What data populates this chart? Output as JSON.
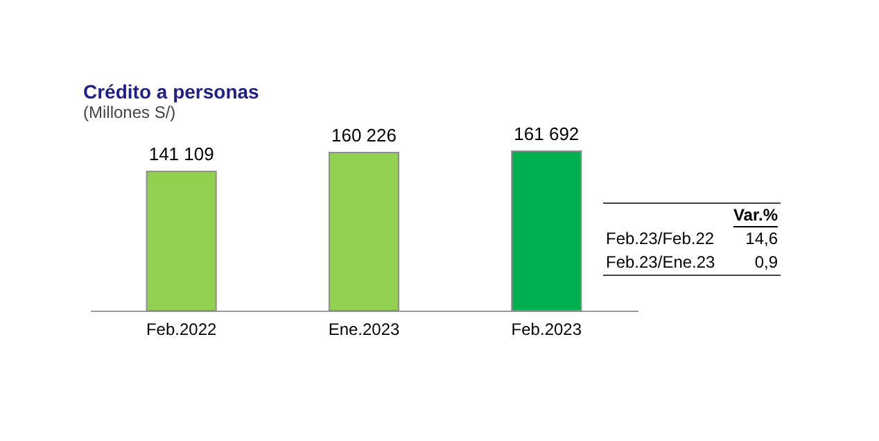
{
  "chart_data": {
    "type": "bar",
    "title": "Crédito a personas",
    "subtitle": "(Millones S/)",
    "categories": [
      "Feb.2022",
      "Ene.2023",
      "Feb.2023"
    ],
    "values": [
      141109,
      160226,
      161692
    ],
    "value_labels": [
      "141 109",
      "160 226",
      "161 692"
    ],
    "colors": [
      "#92d050",
      "#92d050",
      "#00b050"
    ],
    "annotations": [
      "Var.%",
      "Feb.23/Feb.22",
      "14,6",
      "Feb.23/Ene.23",
      "0,9"
    ]
  }
}
